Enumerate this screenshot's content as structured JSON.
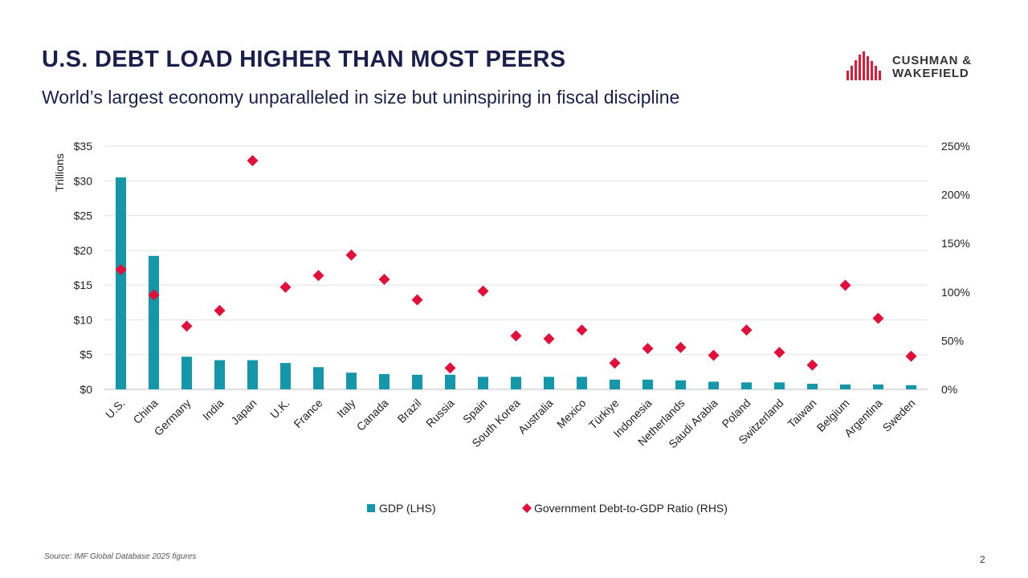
{
  "header": {
    "title": "U.S. DEBT LOAD HIGHER THAN MOST PEERS",
    "subtitle": "World’s largest economy unparalleled in size but uninspiring in fiscal discipline"
  },
  "logo": {
    "line1": "CUSHMAN &",
    "line2": "WAKEFIELD",
    "icon": "building-bars-icon"
  },
  "footer": {
    "source": "Source: IMF Global Database 2025 figures",
    "page": "2"
  },
  "colors": {
    "bar": "#1497a8",
    "marker": "#e0103a",
    "grid": "#e3e3e3",
    "axis": "#bfbfbf",
    "title": "#1a1f4b",
    "logo": "#e31837"
  },
  "chart_data": {
    "type": "bar",
    "categories": [
      "U.S.",
      "China",
      "Germany",
      "India",
      "Japan",
      "U.K.",
      "France",
      "Italy",
      "Canada",
      "Brazil",
      "Russia",
      "Spain",
      "South Korea",
      "Australia",
      "Mexico",
      "Türkiye",
      "Indonesia",
      "Netherlands",
      "Saudi Arabia",
      "Poland",
      "Switzerland",
      "Taiwan",
      "Belgium",
      "Argentina",
      "Sweden"
    ],
    "series": [
      {
        "name": "GDP (LHS)",
        "kind": "bar",
        "axis": "left",
        "values": [
          30.5,
          19.2,
          4.7,
          4.2,
          4.2,
          3.8,
          3.2,
          2.4,
          2.2,
          2.1,
          2.1,
          1.8,
          1.8,
          1.8,
          1.8,
          1.4,
          1.4,
          1.3,
          1.1,
          1.0,
          1.0,
          0.8,
          0.7,
          0.7,
          0.6
        ]
      },
      {
        "name": "Government Debt-to-GDP Ratio (RHS)",
        "kind": "scatter",
        "axis": "right",
        "values": [
          123,
          97,
          65,
          81,
          235,
          105,
          117,
          138,
          113,
          92,
          22,
          101,
          55,
          52,
          61,
          27,
          42,
          43,
          35,
          61,
          38,
          25,
          107,
          73,
          34
        ]
      }
    ],
    "left_axis": {
      "label": "Trillions",
      "ylim": [
        0,
        35
      ],
      "ticks": [
        "$0",
        "$5",
        "$10",
        "$15",
        "$20",
        "$25",
        "$30",
        "$35"
      ]
    },
    "right_axis": {
      "ylim": [
        0,
        250
      ],
      "ticks": [
        "0%",
        "50%",
        "100%",
        "150%",
        "200%",
        "250%"
      ]
    },
    "legend": {
      "position": "bottom",
      "items": [
        "GDP (LHS)",
        "Government Debt-to-GDP Ratio (RHS)"
      ]
    },
    "grid": true
  }
}
